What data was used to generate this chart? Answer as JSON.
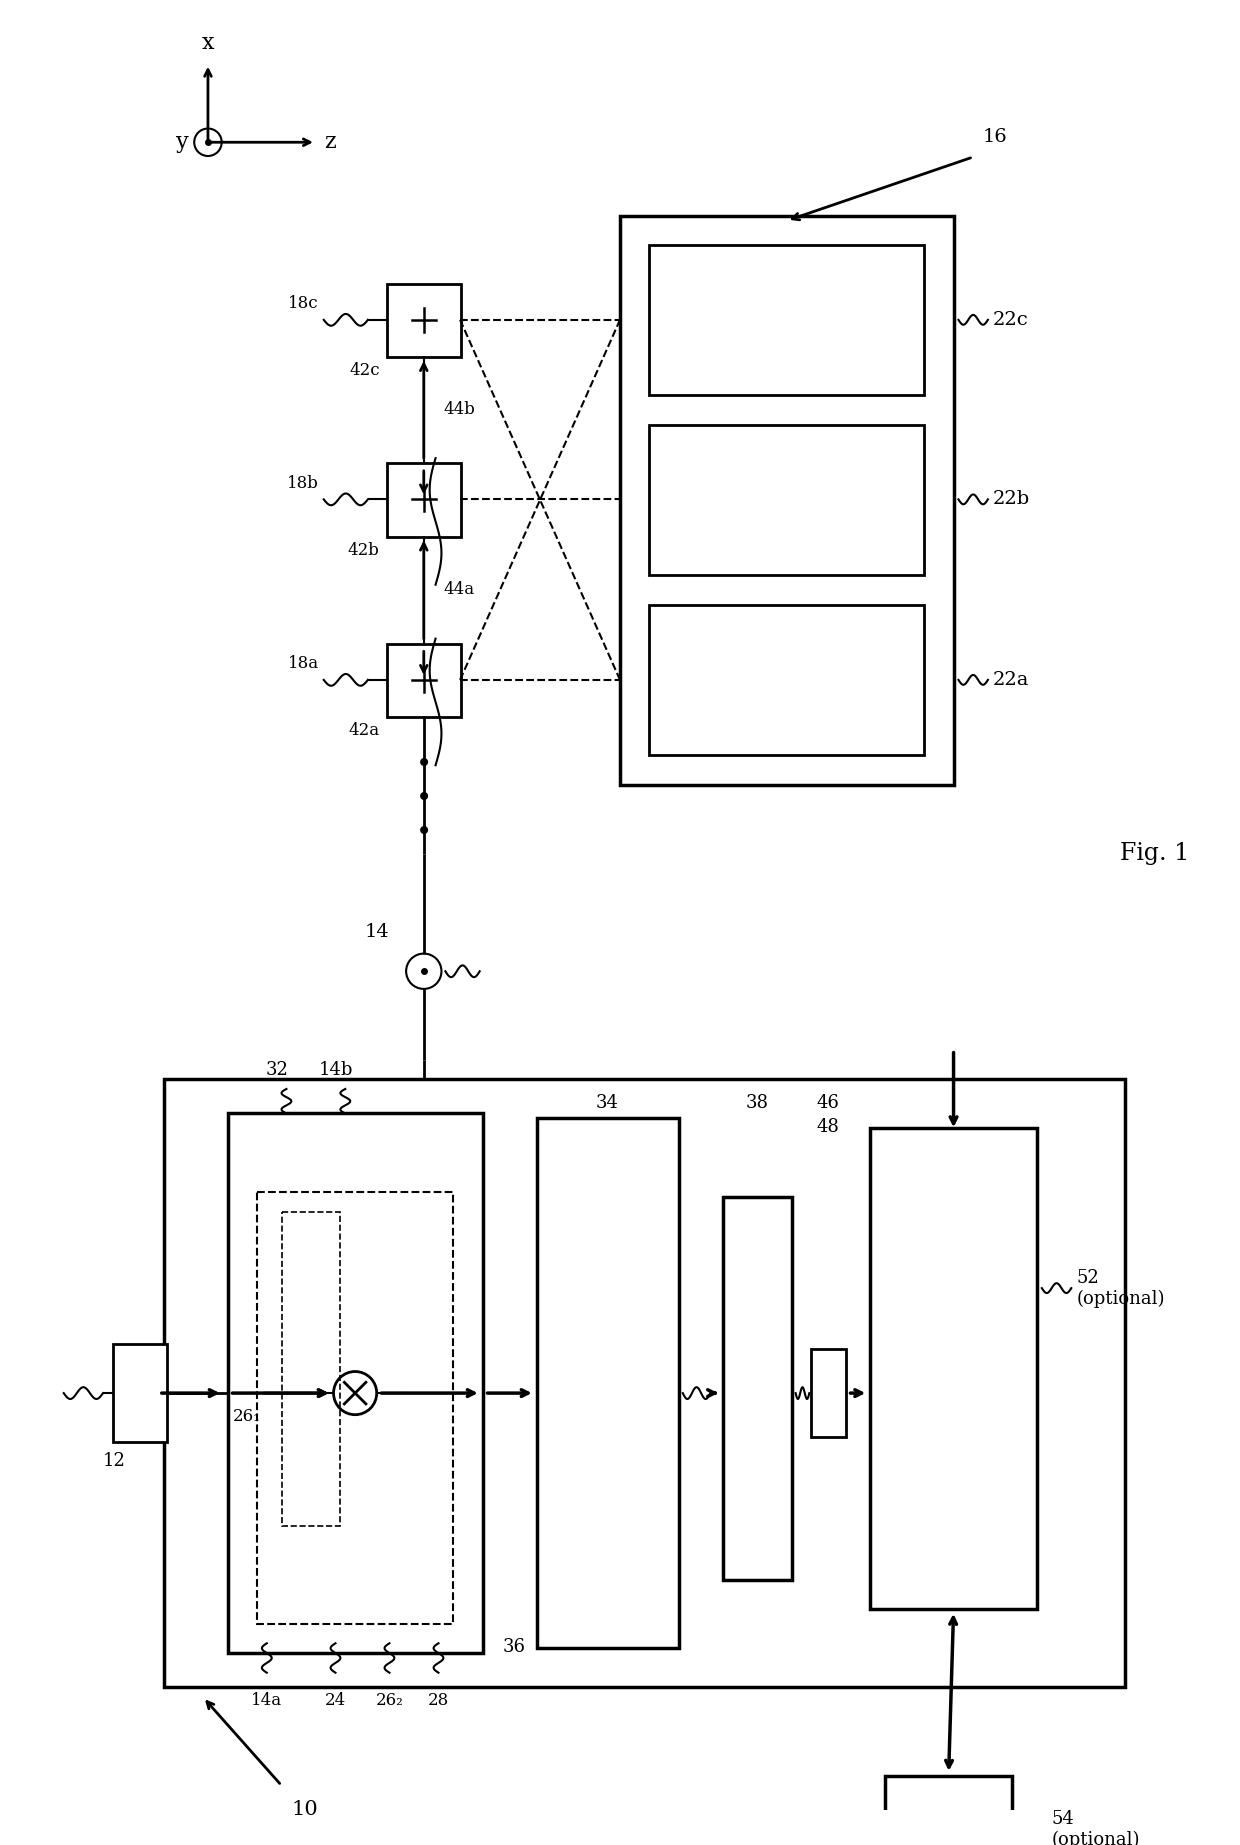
{
  "bg_color": "#ffffff",
  "fig_label": "Fig. 1",
  "ref_10": "10",
  "ref_12": "12",
  "ref_14": "14",
  "ref_14a": "14a",
  "ref_14b": "14b",
  "ref_16": "16",
  "ref_18a": "18a",
  "ref_18b": "18b",
  "ref_18c": "18c",
  "ref_22a": "22a",
  "ref_22b": "22b",
  "ref_22c": "22c",
  "ref_24": "24",
  "ref_26_1": "26₁",
  "ref_26_2": "26₂",
  "ref_28": "28",
  "ref_32": "32",
  "ref_34": "34",
  "ref_36": "36",
  "ref_38": "38",
  "ref_42a": "42a",
  "ref_42b": "42b",
  "ref_42c": "42c",
  "ref_44a": "44a",
  "ref_44b": "44b",
  "ref_46": "46",
  "ref_48": "48",
  "ref_52": "52\n(optional)",
  "ref_54": "54\n(optional)"
}
